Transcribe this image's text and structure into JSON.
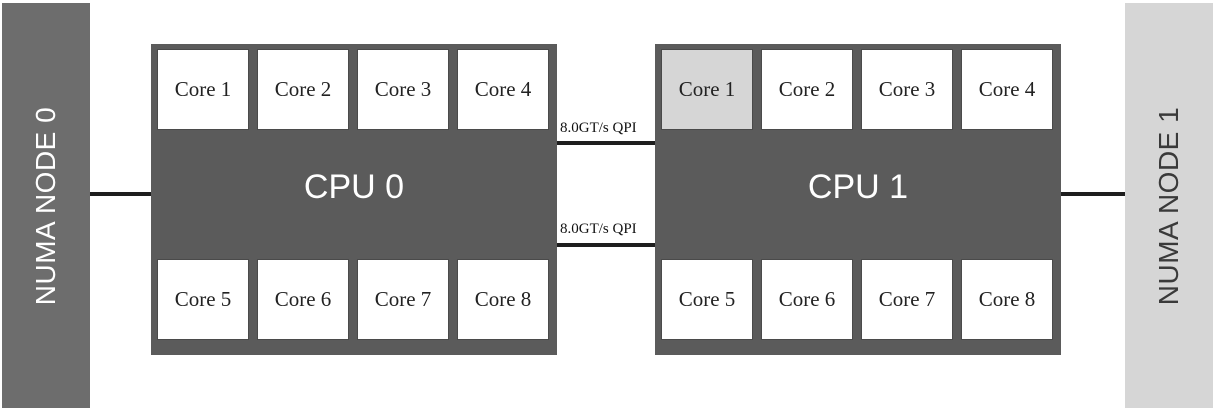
{
  "numa_nodes": [
    {
      "label": "NUMA NODE 0",
      "color": "#6d6d6d"
    },
    {
      "label": "NUMA NODE 1",
      "color": "#d6d6d6"
    }
  ],
  "cpus": [
    {
      "label": "CPU 0",
      "cores_top": [
        "Core 1",
        "Core 2",
        "Core 3",
        "Core 4"
      ],
      "cores_bottom": [
        "Core 5",
        "Core 6",
        "Core 7",
        "Core 8"
      ]
    },
    {
      "label": "CPU 1",
      "cores_top": [
        "Core 1",
        "Core 2",
        "Core 3",
        "Core 4"
      ],
      "cores_bottom": [
        "Core 5",
        "Core 6",
        "Core 7",
        "Core 8"
      ],
      "highlighted_core": "Core 1"
    }
  ],
  "links": {
    "qpi_top": "8.0GT/s QPI",
    "qpi_bottom": "8.0GT/s QPI"
  },
  "colors": {
    "cpu_fill": "#5b5b5b",
    "core_fill": "#ffffff",
    "highlight_fill": "#d6d6d6",
    "link": "#1e1e1e"
  }
}
